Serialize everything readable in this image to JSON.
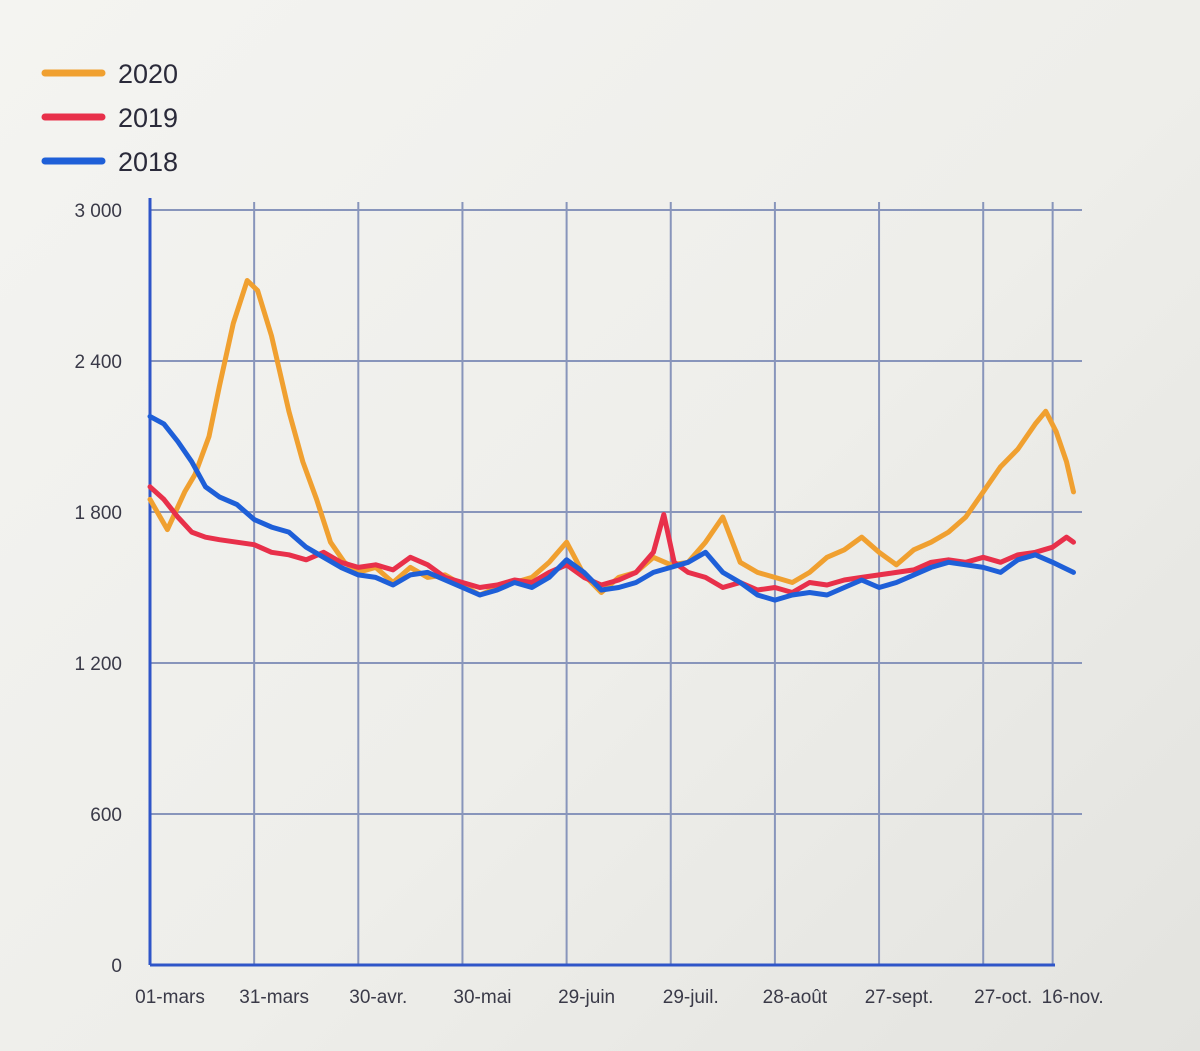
{
  "chart_data": {
    "type": "line",
    "title": "",
    "xlabel": "",
    "ylabel": "",
    "ylim": [
      0,
      3000
    ],
    "yticks": [
      {
        "value": 0,
        "label": "0"
      },
      {
        "value": 600,
        "label": "600"
      },
      {
        "value": 1200,
        "label": "1 200"
      },
      {
        "value": 1800,
        "label": "1 800"
      },
      {
        "value": 2400,
        "label": "2 400"
      },
      {
        "value": 3000,
        "label": "3 000"
      }
    ],
    "xlim": [
      0,
      265
    ],
    "xticks": [
      {
        "value": 0,
        "label": "01-mars"
      },
      {
        "value": 30,
        "label": "31-mars"
      },
      {
        "value": 60,
        "label": "30-avr."
      },
      {
        "value": 90,
        "label": "30-mai"
      },
      {
        "value": 120,
        "label": "29-juin"
      },
      {
        "value": 150,
        "label": "29-juil."
      },
      {
        "value": 180,
        "label": "28-août"
      },
      {
        "value": 210,
        "label": "27-sept."
      },
      {
        "value": 240,
        "label": "27-oct."
      },
      {
        "value": 260,
        "label": "16-nov."
      }
    ],
    "grid": true,
    "legend": "top-left",
    "series": [
      {
        "name": "2020",
        "color": "#f0a030",
        "points": [
          [
            0,
            1850
          ],
          [
            5,
            1730
          ],
          [
            10,
            1880
          ],
          [
            13,
            1950
          ],
          [
            17,
            2100
          ],
          [
            20,
            2300
          ],
          [
            24,
            2550
          ],
          [
            28,
            2720
          ],
          [
            31,
            2680
          ],
          [
            35,
            2500
          ],
          [
            40,
            2200
          ],
          [
            44,
            2000
          ],
          [
            48,
            1850
          ],
          [
            52,
            1680
          ],
          [
            56,
            1600
          ],
          [
            60,
            1560
          ],
          [
            65,
            1580
          ],
          [
            70,
            1520
          ],
          [
            75,
            1580
          ],
          [
            80,
            1540
          ],
          [
            85,
            1550
          ],
          [
            90,
            1510
          ],
          [
            95,
            1470
          ],
          [
            100,
            1500
          ],
          [
            105,
            1520
          ],
          [
            110,
            1540
          ],
          [
            115,
            1600
          ],
          [
            120,
            1680
          ],
          [
            125,
            1550
          ],
          [
            130,
            1480
          ],
          [
            135,
            1540
          ],
          [
            140,
            1560
          ],
          [
            145,
            1620
          ],
          [
            150,
            1590
          ],
          [
            155,
            1600
          ],
          [
            160,
            1680
          ],
          [
            165,
            1780
          ],
          [
            170,
            1600
          ],
          [
            175,
            1560
          ],
          [
            180,
            1540
          ],
          [
            185,
            1520
          ],
          [
            190,
            1560
          ],
          [
            195,
            1620
          ],
          [
            200,
            1650
          ],
          [
            205,
            1700
          ],
          [
            210,
            1640
          ],
          [
            215,
            1590
          ],
          [
            220,
            1650
          ],
          [
            225,
            1680
          ],
          [
            230,
            1720
          ],
          [
            235,
            1780
          ],
          [
            240,
            1880
          ],
          [
            245,
            1980
          ],
          [
            250,
            2050
          ],
          [
            255,
            2150
          ],
          [
            258,
            2200
          ],
          [
            261,
            2120
          ],
          [
            264,
            2000
          ],
          [
            266,
            1880
          ]
        ]
      },
      {
        "name": "2019",
        "color": "#e8304a",
        "points": [
          [
            0,
            1900
          ],
          [
            4,
            1850
          ],
          [
            8,
            1780
          ],
          [
            12,
            1720
          ],
          [
            16,
            1700
          ],
          [
            20,
            1690
          ],
          [
            25,
            1680
          ],
          [
            30,
            1670
          ],
          [
            35,
            1640
          ],
          [
            40,
            1630
          ],
          [
            45,
            1610
          ],
          [
            50,
            1640
          ],
          [
            55,
            1600
          ],
          [
            60,
            1580
          ],
          [
            65,
            1590
          ],
          [
            70,
            1570
          ],
          [
            75,
            1620
          ],
          [
            80,
            1590
          ],
          [
            85,
            1540
          ],
          [
            90,
            1520
          ],
          [
            95,
            1500
          ],
          [
            100,
            1510
          ],
          [
            105,
            1530
          ],
          [
            110,
            1520
          ],
          [
            115,
            1560
          ],
          [
            120,
            1590
          ],
          [
            125,
            1540
          ],
          [
            130,
            1510
          ],
          [
            135,
            1530
          ],
          [
            140,
            1560
          ],
          [
            145,
            1640
          ],
          [
            148,
            1790
          ],
          [
            151,
            1600
          ],
          [
            155,
            1560
          ],
          [
            160,
            1540
          ],
          [
            165,
            1500
          ],
          [
            170,
            1520
          ],
          [
            175,
            1490
          ],
          [
            180,
            1500
          ],
          [
            185,
            1480
          ],
          [
            190,
            1520
          ],
          [
            195,
            1510
          ],
          [
            200,
            1530
          ],
          [
            205,
            1540
          ],
          [
            210,
            1550
          ],
          [
            215,
            1560
          ],
          [
            220,
            1570
          ],
          [
            225,
            1600
          ],
          [
            230,
            1610
          ],
          [
            235,
            1600
          ],
          [
            240,
            1620
          ],
          [
            245,
            1600
          ],
          [
            250,
            1630
          ],
          [
            255,
            1640
          ],
          [
            260,
            1660
          ],
          [
            264,
            1700
          ],
          [
            266,
            1680
          ]
        ]
      },
      {
        "name": "2018",
        "color": "#1e5fd8",
        "points": [
          [
            0,
            2180
          ],
          [
            4,
            2150
          ],
          [
            8,
            2080
          ],
          [
            12,
            2000
          ],
          [
            16,
            1900
          ],
          [
            20,
            1860
          ],
          [
            25,
            1830
          ],
          [
            30,
            1770
          ],
          [
            35,
            1740
          ],
          [
            40,
            1720
          ],
          [
            45,
            1660
          ],
          [
            50,
            1620
          ],
          [
            55,
            1580
          ],
          [
            60,
            1550
          ],
          [
            65,
            1540
          ],
          [
            70,
            1510
          ],
          [
            75,
            1550
          ],
          [
            80,
            1560
          ],
          [
            85,
            1530
          ],
          [
            90,
            1500
          ],
          [
            95,
            1470
          ],
          [
            100,
            1490
          ],
          [
            105,
            1520
          ],
          [
            110,
            1500
          ],
          [
            115,
            1540
          ],
          [
            120,
            1610
          ],
          [
            125,
            1560
          ],
          [
            130,
            1490
          ],
          [
            135,
            1500
          ],
          [
            140,
            1520
          ],
          [
            145,
            1560
          ],
          [
            150,
            1580
          ],
          [
            155,
            1600
          ],
          [
            160,
            1640
          ],
          [
            165,
            1560
          ],
          [
            170,
            1520
          ],
          [
            175,
            1470
          ],
          [
            180,
            1450
          ],
          [
            185,
            1470
          ],
          [
            190,
            1480
          ],
          [
            195,
            1470
          ],
          [
            200,
            1500
          ],
          [
            205,
            1530
          ],
          [
            210,
            1500
          ],
          [
            215,
            1520
          ],
          [
            220,
            1550
          ],
          [
            225,
            1580
          ],
          [
            230,
            1600
          ],
          [
            235,
            1590
          ],
          [
            240,
            1580
          ],
          [
            245,
            1560
          ],
          [
            250,
            1610
          ],
          [
            255,
            1630
          ],
          [
            260,
            1600
          ],
          [
            263,
            1580
          ],
          [
            266,
            1560
          ]
        ]
      }
    ]
  }
}
